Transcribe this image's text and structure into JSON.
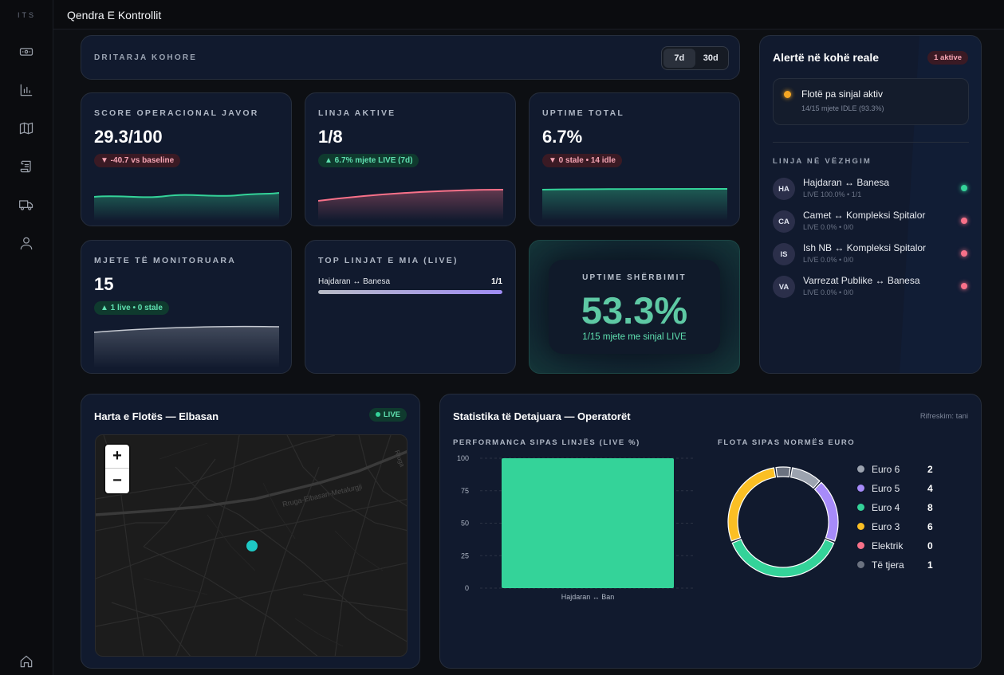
{
  "app": {
    "brand": "ITS",
    "title": "Qendra E Kontrollit"
  },
  "sidebar": {
    "icons": [
      "money-icon",
      "bar-chart-icon",
      "map-icon",
      "scroll-icon",
      "truck-icon",
      "user-icon",
      "home-icon"
    ]
  },
  "time_window": {
    "label": "DRITARJA KOHORE",
    "options": [
      "7d",
      "30d"
    ],
    "selected": "7d"
  },
  "kpis": {
    "score": {
      "label": "SCORE OPERACIONAL JAVOR",
      "value": "29.3/100",
      "badge": "▼ -40.7 vs baseline"
    },
    "lines": {
      "label": "LINJA AKTIVE",
      "value": "1/8",
      "badge": "▲ 6.7% mjete LIVE (7d)"
    },
    "uptime": {
      "label": "UPTIME TOTAL",
      "value": "6.7%",
      "badge": "▼ 0 stale • 14 idle"
    },
    "vehicles": {
      "label": "MJETE TË MONITORUARA",
      "value": "15",
      "badge": "▲ 1 live • 0 stale"
    },
    "top_lines": {
      "label": "TOP LINJAT E MIA (LIVE)",
      "items": [
        {
          "name": "Hajdaran ↔ Banesa",
          "value": "1/1",
          "fraction": 1.0
        }
      ]
    },
    "service_uptime": {
      "label": "UPTIME SHËRBIMIT",
      "value": "53.3%",
      "sub": "1/15 mjete me sinjal LIVE"
    }
  },
  "alerts": {
    "title": "Alertë në kohë reale",
    "badge": "1 aktive",
    "items": [
      {
        "title": "Flotë pa sinjal aktiv",
        "sub": "14/15 mjete IDLE (93.3%)"
      }
    ],
    "watch_title": "LINJA NË VËZHGIM",
    "lines": [
      {
        "avatar": "HA",
        "name": "Hajdaran ↔ Banesa",
        "sub": "LIVE 100.0% • 1/1",
        "status_color": "#34d399"
      },
      {
        "avatar": "CA",
        "name": "Camet ↔ Kompleksi Spitalor",
        "sub": "LIVE 0.0% • 0/0",
        "status_color": "#f87189"
      },
      {
        "avatar": "IS",
        "name": "Ish NB ↔ Kompleksi Spitalor",
        "sub": "LIVE 0.0% • 0/0",
        "status_color": "#f87189"
      },
      {
        "avatar": "VA",
        "name": "Varrezat Publike ↔ Banesa",
        "sub": "LIVE 0.0% • 0/0",
        "status_color": "#f87189"
      }
    ]
  },
  "map": {
    "title": "Harta e Flotës — Elbasan",
    "badge": "LIVE",
    "zoom_in": "+",
    "zoom_out": "−",
    "street_label": "Rruga-Elbasan-Metalurgji",
    "street_label_2": "Rruga"
  },
  "stats": {
    "title": "Statistika të Detajuara — Operatorët",
    "refresh": "Rifreskim: tani",
    "bar_title": "PERFORMANCA SIPAS LINJËS (LIVE %)",
    "donut_title": "FLOTA SIPAS NORMËS EURO"
  },
  "chart_data": [
    {
      "type": "bar",
      "title": "PERFORMANCA SIPAS LINJËS (LIVE %)",
      "categories": [
        "Hajdaran ↔ Ban"
      ],
      "values": [
        100
      ],
      "ylim": [
        0,
        100
      ],
      "yticks": [
        "100",
        "75",
        "50",
        "25",
        "0"
      ],
      "color": "#34d399",
      "grid": true
    },
    {
      "type": "pie",
      "title": "FLOTA SIPAS NORMËS EURO",
      "labels": [
        "Euro 6",
        "Euro 5",
        "Euro 4",
        "Euro 3",
        "Elektrik",
        "Të tjera"
      ],
      "values": [
        2,
        4,
        8,
        6,
        0,
        1
      ],
      "colors": [
        "#9ca3af",
        "#a78bfa",
        "#34d399",
        "#fbbf24",
        "#f87189",
        "#6b7280"
      ],
      "legend": "right"
    }
  ],
  "colors": {
    "accent_green": "#34d399",
    "accent_red": "#f87189",
    "accent_orange": "#f5a623",
    "card_bg": "#111a2e"
  }
}
